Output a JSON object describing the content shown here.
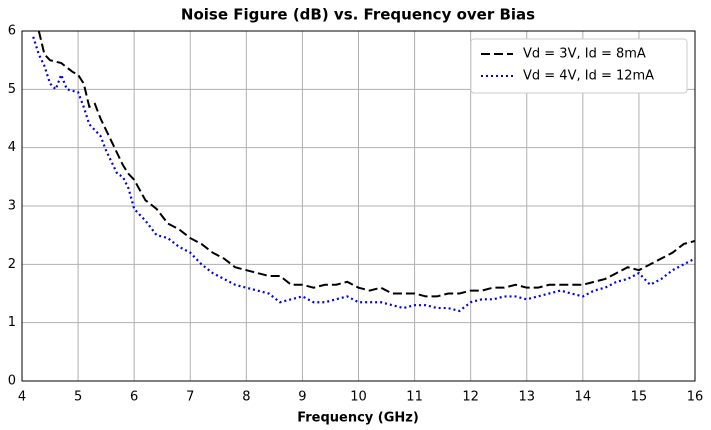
{
  "chart_data": {
    "type": "line",
    "title": "Noise Figure (dB) vs. Frequency over Bias",
    "x_label": "Frequency (GHz)",
    "xlim": [
      4,
      16
    ],
    "xticks": [
      4,
      5,
      6,
      7,
      8,
      9,
      10,
      11,
      12,
      13,
      14,
      15,
      16
    ],
    "ylim": [
      0,
      6
    ],
    "yticks": [
      0,
      1,
      2,
      3,
      4,
      5,
      6
    ],
    "grid": true,
    "legend": "upper right",
    "series": [
      {
        "name": "Vd = 3V, Id = 8mA",
        "color": "#000000",
        "style": "dashed",
        "x": [
          4.3,
          4.4,
          4.5,
          4.7,
          4.9,
          5.0,
          5.1,
          5.2,
          5.3,
          5.4,
          5.5,
          5.6,
          5.7,
          5.8,
          5.9,
          6.0,
          6.2,
          6.4,
          6.6,
          6.8,
          7.0,
          7.2,
          7.4,
          7.6,
          7.8,
          8.0,
          8.2,
          8.4,
          8.6,
          8.8,
          9.0,
          9.2,
          9.4,
          9.6,
          9.8,
          10.0,
          10.2,
          10.4,
          10.6,
          10.8,
          11.0,
          11.2,
          11.4,
          11.6,
          11.8,
          12.0,
          12.2,
          12.4,
          12.6,
          12.8,
          13.0,
          13.2,
          13.4,
          13.6,
          13.8,
          14.0,
          14.2,
          14.4,
          14.6,
          14.8,
          15.0,
          15.2,
          15.4,
          15.6,
          15.8,
          16.0
        ],
        "values": [
          6.0,
          5.6,
          5.5,
          5.45,
          5.3,
          5.25,
          5.1,
          4.7,
          4.75,
          4.5,
          4.3,
          4.1,
          3.9,
          3.7,
          3.55,
          3.45,
          3.1,
          2.95,
          2.7,
          2.6,
          2.45,
          2.35,
          2.2,
          2.1,
          1.95,
          1.9,
          1.85,
          1.8,
          1.8,
          1.65,
          1.65,
          1.6,
          1.65,
          1.65,
          1.7,
          1.6,
          1.55,
          1.6,
          1.5,
          1.5,
          1.5,
          1.45,
          1.45,
          1.5,
          1.5,
          1.55,
          1.55,
          1.6,
          1.6,
          1.65,
          1.6,
          1.6,
          1.65,
          1.65,
          1.65,
          1.65,
          1.7,
          1.75,
          1.85,
          1.95,
          1.9,
          2.0,
          2.1,
          2.2,
          2.35,
          2.4
        ]
      },
      {
        "name": "Vd = 4V, Id = 12mA",
        "color": "#0000ee",
        "style": "dotted",
        "x": [
          4.2,
          4.3,
          4.4,
          4.5,
          4.6,
          4.7,
          4.8,
          5.0,
          5.1,
          5.2,
          5.3,
          5.4,
          5.5,
          5.6,
          5.7,
          5.8,
          5.9,
          6.0,
          6.2,
          6.4,
          6.6,
          6.8,
          7.0,
          7.2,
          7.4,
          7.6,
          7.8,
          8.0,
          8.2,
          8.4,
          8.6,
          8.8,
          9.0,
          9.2,
          9.4,
          9.6,
          9.8,
          10.0,
          10.2,
          10.4,
          10.6,
          10.8,
          11.0,
          11.2,
          11.4,
          11.6,
          11.8,
          12.0,
          12.2,
          12.4,
          12.6,
          12.8,
          13.0,
          13.2,
          13.4,
          13.6,
          13.8,
          14.0,
          14.2,
          14.4,
          14.6,
          14.8,
          15.0,
          15.2,
          15.4,
          15.6,
          15.8,
          16.0
        ],
        "values": [
          5.9,
          5.6,
          5.4,
          5.1,
          5.0,
          5.25,
          5.0,
          4.95,
          4.7,
          4.4,
          4.3,
          4.2,
          3.95,
          3.75,
          3.55,
          3.5,
          3.3,
          2.95,
          2.75,
          2.5,
          2.45,
          2.3,
          2.2,
          2.0,
          1.85,
          1.75,
          1.65,
          1.6,
          1.55,
          1.5,
          1.35,
          1.4,
          1.45,
          1.35,
          1.35,
          1.4,
          1.45,
          1.35,
          1.35,
          1.35,
          1.3,
          1.25,
          1.3,
          1.3,
          1.25,
          1.25,
          1.2,
          1.35,
          1.4,
          1.4,
          1.45,
          1.45,
          1.4,
          1.45,
          1.5,
          1.55,
          1.5,
          1.45,
          1.55,
          1.6,
          1.7,
          1.75,
          1.85,
          1.65,
          1.75,
          1.9,
          2.0,
          2.1
        ]
      }
    ]
  }
}
